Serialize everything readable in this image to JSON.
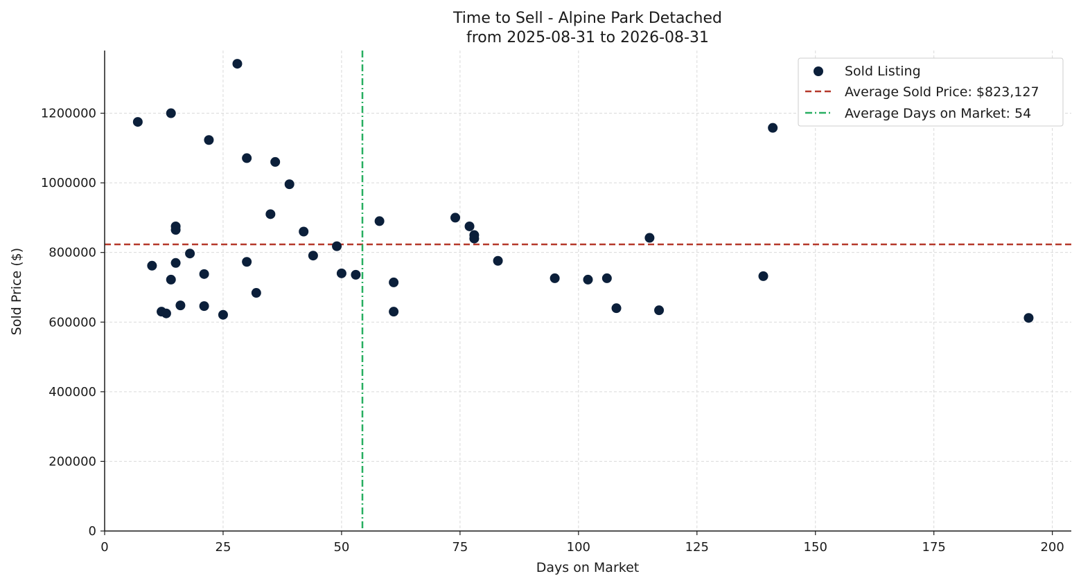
{
  "chart_data": {
    "type": "scatter",
    "title": "Time to Sell - Alpine Park Detached",
    "subtitle": "from 2025-08-31 to 2026-08-31",
    "xlabel": "Days on Market",
    "ylabel": "Sold Price ($)",
    "xlim": [
      0,
      204
    ],
    "ylim": [
      0,
      1380000
    ],
    "xticks": [
      0,
      25,
      50,
      75,
      100,
      125,
      150,
      175,
      200
    ],
    "yticks": [
      0,
      200000,
      400000,
      600000,
      800000,
      1000000,
      1200000
    ],
    "xtick_labels": [
      "0",
      "25",
      "50",
      "75",
      "100",
      "125",
      "150",
      "175",
      "200"
    ],
    "ytick_labels": [
      "0",
      "200000",
      "400000",
      "600000",
      "800000",
      "1000000",
      "1200000"
    ],
    "grid": true,
    "legend_position": "top-right",
    "series": [
      {
        "name": "Sold Listing",
        "color": "#0b1f3a",
        "points": [
          [
            7,
            1175000
          ],
          [
            10,
            762000
          ],
          [
            12,
            630000
          ],
          [
            13,
            625000
          ],
          [
            14,
            1200000
          ],
          [
            14,
            722000
          ],
          [
            15,
            875000
          ],
          [
            15,
            865000
          ],
          [
            15,
            770000
          ],
          [
            16,
            648000
          ],
          [
            18,
            797000
          ],
          [
            21,
            738000
          ],
          [
            21,
            646000
          ],
          [
            22,
            1123000
          ],
          [
            25,
            621000
          ],
          [
            28,
            1342000
          ],
          [
            30,
            1071000
          ],
          [
            30,
            773000
          ],
          [
            32,
            684000
          ],
          [
            35,
            910000
          ],
          [
            36,
            1060000
          ],
          [
            39,
            996000
          ],
          [
            42,
            860000
          ],
          [
            44,
            791000
          ],
          [
            49,
            818000
          ],
          [
            50,
            740000
          ],
          [
            53,
            736000
          ],
          [
            58,
            890000
          ],
          [
            61,
            714000
          ],
          [
            61,
            630000
          ],
          [
            74,
            900000
          ],
          [
            77,
            875000
          ],
          [
            78,
            850000
          ],
          [
            78,
            840000
          ],
          [
            83,
            776000
          ],
          [
            95,
            726000
          ],
          [
            102,
            722000
          ],
          [
            106,
            726000
          ],
          [
            108,
            640000
          ],
          [
            115,
            842000
          ],
          [
            117,
            634000
          ],
          [
            139,
            732000
          ],
          [
            141,
            1158000
          ],
          [
            195,
            612000
          ]
        ]
      }
    ],
    "reference_lines": [
      {
        "name": "Average Sold Price: $823,127",
        "orientation": "horizontal",
        "value": 823127,
        "style": "dashed",
        "color": "#b5382a"
      },
      {
        "name": "Average Days on Market: 54",
        "orientation": "vertical",
        "value": 54.4,
        "style": "dashdot",
        "color": "#27ae60"
      }
    ]
  }
}
